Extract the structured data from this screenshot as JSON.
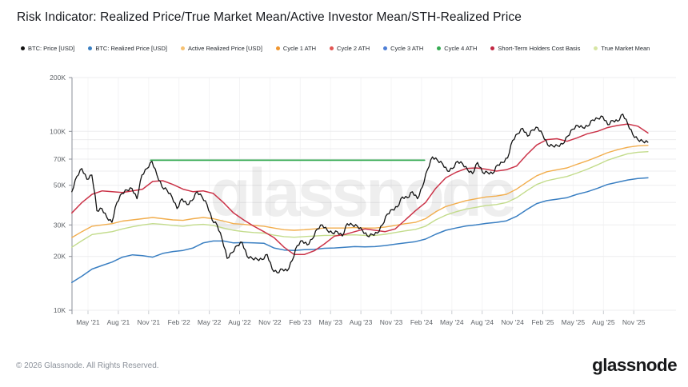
{
  "header": {
    "title": "Risk Indicator: Realized Price/True Market Mean/Active Investor Mean/STH-Realized Price"
  },
  "legend": {
    "items": [
      {
        "label": "BTC: Price [USD]",
        "color": "#111111"
      },
      {
        "label": "BTC: Realized Price [USD]",
        "color": "#3a7fc2"
      },
      {
        "label": "Active Realized Price [USD]",
        "color": "#f6c172"
      },
      {
        "label": "Cycle 1 ATH",
        "color": "#f0962e"
      },
      {
        "label": "Cycle 2 ATH",
        "color": "#e25552"
      },
      {
        "label": "Cycle 3 ATH",
        "color": "#4d7ed6"
      },
      {
        "label": "Cycle 4 ATH",
        "color": "#35ab52"
      },
      {
        "label": "Short-Term Holders Cost Basis",
        "color": "#c22742"
      },
      {
        "label": "True Market Mean",
        "color": "#d6e5a3"
      }
    ]
  },
  "watermark": "glassnode",
  "footer": {
    "copyright": "© 2026 Glassnode. All Rights Reserved.",
    "logo": "glassnode"
  },
  "chart_data": {
    "type": "line",
    "title": "Risk Indicator: Realized Price/True Market Mean/Active Investor Mean/STH-Realized Price",
    "y_scale": "log",
    "y_unit": "USD",
    "ylim_usd": [
      10000,
      200000
    ],
    "grid": true,
    "legend_position": "top",
    "x_unit": "months, 0 = Mar 2021",
    "x_tick_start_m": 2,
    "x_tick_step_m": 3,
    "x_tick_labels": [
      "May '21",
      "Aug '21",
      "Nov '21",
      "Feb '22",
      "May '22",
      "Aug '22",
      "Nov '22",
      "Feb '23",
      "May '23",
      "Aug '23",
      "Nov '23",
      "Feb '24",
      "May '24",
      "Aug '24",
      "Nov '24",
      "Feb '25",
      "May '25",
      "Aug '25",
      "Nov '25"
    ],
    "y_ticks": [
      {
        "v": 200,
        "label": "200K"
      },
      {
        "v": 100,
        "label": "100K"
      },
      {
        "v": 70,
        "label": "70K"
      },
      {
        "v": 50,
        "label": "50K"
      },
      {
        "v": 30,
        "label": "30K"
      },
      {
        "v": 20,
        "label": "20K"
      },
      {
        "v": 10,
        "label": "10K"
      }
    ],
    "y_gridlines_k": [
      200,
      100,
      90,
      80,
      70,
      60,
      50,
      40,
      30,
      20,
      10
    ],
    "series": [
      {
        "name": "True Market Mean",
        "color": "#c3dc8c",
        "width": 1.4,
        "start_m": 0.4,
        "step_m": 1.0,
        "values_k": [
          22.5,
          24.5,
          26.5,
          27.0,
          27.5,
          28.5,
          29.3,
          30.0,
          30.5,
          30.2,
          29.8,
          29.5,
          30.0,
          30.2,
          29.8,
          28.8,
          28.0,
          27.5,
          27.2,
          27.0,
          26.3,
          25.8,
          25.6,
          25.8,
          26.0,
          26.2,
          26.2,
          26.3,
          26.4,
          26.2,
          26.2,
          26.6,
          27.2,
          27.8,
          28.3,
          29.5,
          32.0,
          34.0,
          35.5,
          36.8,
          37.6,
          38.5,
          39.0,
          40.0,
          42.5,
          46.5,
          50.5,
          53.0,
          54.5,
          56.0,
          58.5,
          61.5,
          65.0,
          69.0,
          72.0,
          75.0,
          76.5,
          77.0
        ]
      },
      {
        "name": "Active Realized Price [USD]",
        "color": "#f2ae4e",
        "width": 1.4,
        "start_m": 0.4,
        "step_m": 1.0,
        "values_k": [
          25.5,
          27.5,
          29.5,
          30.0,
          30.5,
          31.5,
          32.0,
          32.5,
          33.0,
          32.5,
          32.0,
          31.8,
          32.5,
          33.0,
          32.5,
          31.5,
          30.5,
          30.2,
          29.8,
          29.5,
          28.8,
          28.2,
          28.0,
          28.2,
          28.5,
          28.8,
          28.8,
          28.8,
          29.0,
          28.8,
          28.8,
          29.2,
          29.8,
          30.5,
          31.0,
          32.5,
          35.5,
          38.0,
          39.5,
          41.0,
          42.0,
          43.0,
          43.5,
          44.5,
          47.5,
          52.0,
          56.5,
          59.5,
          61.0,
          62.5,
          65.5,
          68.5,
          72.0,
          76.0,
          79.0,
          81.5,
          83.0,
          83.5
        ]
      },
      {
        "name": "BTC: Realized Price [USD]",
        "color": "#3a7fc2",
        "width": 1.5,
        "start_m": 0.4,
        "step_m": 1.0,
        "values_k": [
          14.3,
          15.5,
          17.0,
          17.8,
          18.6,
          19.8,
          20.4,
          20.2,
          19.8,
          20.8,
          21.3,
          21.6,
          22.3,
          23.8,
          24.4,
          24.4,
          23.8,
          23.9,
          23.8,
          23.7,
          22.3,
          21.7,
          21.6,
          21.8,
          21.9,
          22.2,
          22.3,
          22.5,
          22.7,
          22.6,
          22.7,
          23.0,
          23.4,
          23.8,
          24.2,
          25.0,
          26.6,
          28.0,
          28.8,
          29.6,
          30.0,
          30.6,
          31.0,
          31.6,
          33.5,
          36.5,
          39.5,
          41.0,
          41.8,
          42.6,
          44.5,
          46.0,
          48.0,
          50.5,
          52.0,
          53.5,
          54.5,
          55.0
        ]
      },
      {
        "name": "Cycle 4 ATH",
        "color": "#35ab52",
        "width": 1.8,
        "start_m": 8.2,
        "step_m": 27.1,
        "values_k": [
          69,
          69
        ]
      },
      {
        "name": "Short-Term Holders Cost Basis",
        "color": "#cb3449",
        "width": 1.5,
        "start_m": 0.4,
        "step_m": 1.0,
        "values_k": [
          35.0,
          40.0,
          44.5,
          46.5,
          46.0,
          45.5,
          46.5,
          47.5,
          52.5,
          53.0,
          50.5,
          47.5,
          46.0,
          46.5,
          45.0,
          40.0,
          35.0,
          32.0,
          29.5,
          27.5,
          25.5,
          22.5,
          20.5,
          20.5,
          21.5,
          23.5,
          26.0,
          26.5,
          27.5,
          28.5,
          28.0,
          27.5,
          28.5,
          32.0,
          36.0,
          40.0,
          48.0,
          55.0,
          59.0,
          62.0,
          62.5,
          61.5,
          60.0,
          61.0,
          64.0,
          74.0,
          84.0,
          90.0,
          91.0,
          88.0,
          92.0,
          97.0,
          100.0,
          105.0,
          108.0,
          110.0,
          107.0,
          98.0
        ]
      },
      {
        "name": "BTC: Price [USD]",
        "color": "#111111",
        "width": 1.3,
        "start_m": 0.4,
        "step_m": 0.4956,
        "jitter": 0.016,
        "values_k": [
          46,
          56,
          62,
          54,
          57,
          36,
          37,
          33,
          31,
          40,
          45,
          47,
          48,
          42,
          57,
          62,
          68,
          57,
          49,
          47,
          43,
          37,
          42,
          39,
          41,
          46,
          43,
          39,
          32,
          30,
          25,
          19.5,
          21,
          23,
          24,
          20,
          19.5,
          19.3,
          19.2,
          20.5,
          17,
          16.2,
          17,
          16.6,
          19,
          23,
          24.5,
          23.2,
          25,
          28.5,
          30,
          28,
          27,
          27.5,
          26,
          30.5,
          30,
          29.5,
          28,
          26,
          26.5,
          27,
          30,
          34.5,
          36.5,
          37.8,
          43,
          42.5,
          46,
          42,
          49,
          61,
          72,
          69,
          66,
          60,
          62,
          68,
          66,
          61,
          58,
          67,
          59,
          59,
          58,
          65,
          67,
          71,
          89,
          97,
          104,
          94,
          102,
          105,
          96,
          84,
          83,
          83,
          85,
          94,
          103,
          108,
          105,
          107,
          116,
          118,
          121,
          109,
          115,
          114,
          125,
          110,
          96,
          90,
          88,
          87
        ]
      }
    ]
  }
}
